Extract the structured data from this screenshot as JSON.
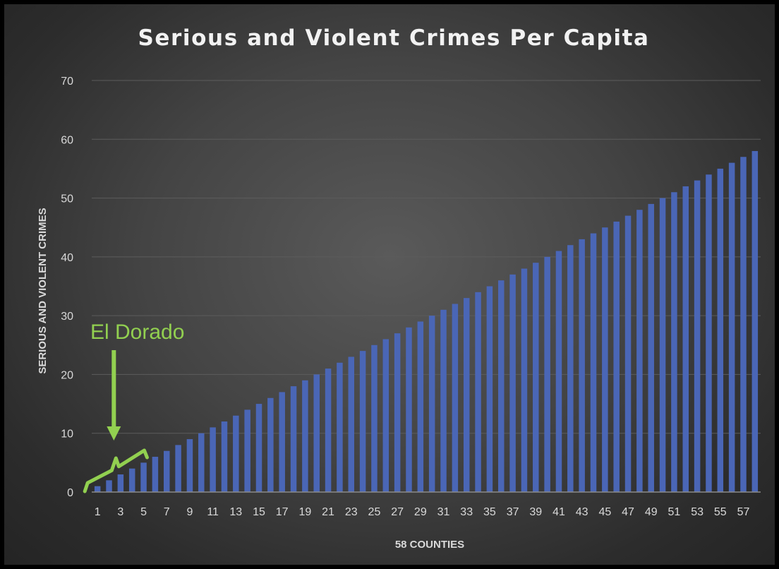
{
  "chart_data": {
    "type": "bar",
    "title": "Serious and Violent Crimes Per Capita",
    "xlabel": "58 COUNTIES",
    "ylabel": "SERIOUS AND VIOLENT CRIMES",
    "ylim": [
      0,
      70
    ],
    "yticks": [
      0,
      10,
      20,
      30,
      40,
      50,
      60,
      70
    ],
    "grid": true,
    "legend": "none",
    "bar_color": "#4a66b6",
    "categories": [
      1,
      2,
      3,
      4,
      5,
      6,
      7,
      8,
      9,
      10,
      11,
      12,
      13,
      14,
      15,
      16,
      17,
      18,
      19,
      20,
      21,
      22,
      23,
      24,
      25,
      26,
      27,
      28,
      29,
      30,
      31,
      32,
      33,
      34,
      35,
      36,
      37,
      38,
      39,
      40,
      41,
      42,
      43,
      44,
      45,
      46,
      47,
      48,
      49,
      50,
      51,
      52,
      53,
      54,
      55,
      56,
      57,
      58
    ],
    "xtick_labels": [
      "1",
      "3",
      "5",
      "7",
      "9",
      "11",
      "13",
      "15",
      "17",
      "19",
      "21",
      "23",
      "25",
      "27",
      "29",
      "31",
      "33",
      "35",
      "37",
      "39",
      "41",
      "43",
      "45",
      "47",
      "49",
      "51",
      "53",
      "55",
      "57"
    ],
    "values": [
      1,
      2,
      3,
      4,
      5,
      6,
      7,
      8,
      9,
      10,
      11,
      12,
      13,
      14,
      15,
      16,
      17,
      18,
      19,
      20,
      21,
      22,
      23,
      24,
      25,
      26,
      27,
      28,
      29,
      30,
      31,
      32,
      33,
      34,
      35,
      36,
      37,
      38,
      39,
      40,
      41,
      42,
      43,
      44,
      45,
      46,
      47,
      48,
      49,
      50,
      51,
      52,
      53,
      54,
      55,
      56,
      57,
      58
    ],
    "annotation": {
      "text": "El Dorado",
      "color": "#92d050",
      "bracket_from_category": 1,
      "bracket_to_category": 5
    }
  }
}
